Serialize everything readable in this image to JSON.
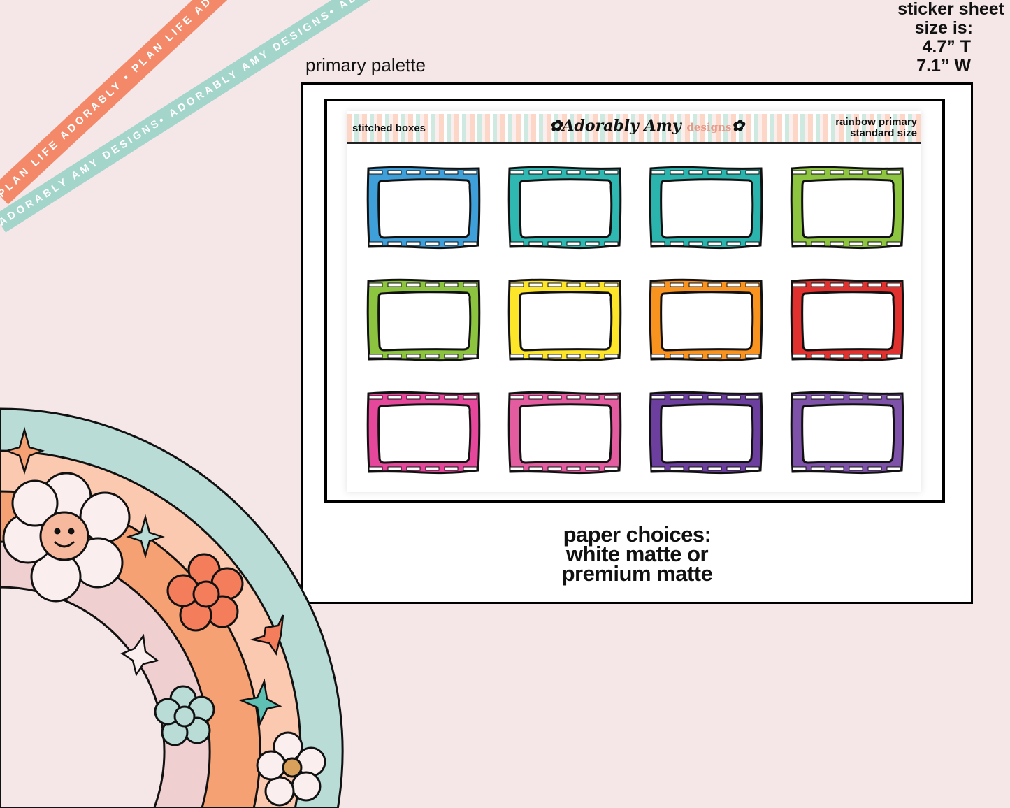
{
  "ribbons": {
    "orange_text": "PLAN LIFE ADORABLY • PLAN LIFE ADORABLY • PLAN LIFE ADORABLY •",
    "teal_text": "ADORABLY AMY DESIGNS• ADORABLY AMY DESIGNS• ADORABLY AMY DESIGNS•"
  },
  "size_note": {
    "line1": "sticker sheet",
    "line2": "size is:",
    "line3": "4.7” T",
    "line4": "7.1” W"
  },
  "palette_title": "primary palette",
  "sheet": {
    "label_left": "stitched boxes",
    "logo": "Adorably Amy",
    "logo_sub": "designs",
    "label_right_1": "rainbow primary",
    "label_right_2": "standard size"
  },
  "stickers": [
    {
      "color": "#3f9fd9"
    },
    {
      "color": "#2fb8b1"
    },
    {
      "color": "#2bb3ad"
    },
    {
      "color": "#8dc540"
    },
    {
      "color": "#8cc43f"
    },
    {
      "color": "#fde52a"
    },
    {
      "color": "#f7931e"
    },
    {
      "color": "#e1312f"
    },
    {
      "color": "#e5489b"
    },
    {
      "color": "#e35c9f"
    },
    {
      "color": "#6c3e9e"
    },
    {
      "color": "#7d52a8"
    }
  ],
  "paper_choices": {
    "line1": "paper choices:",
    "line2": "white matte or",
    "line3": "premium matte"
  },
  "colors": {
    "background": "#f5e7e7",
    "rainbow_teal": "#b9dcd6",
    "rainbow_peach": "#fbc8b0",
    "rainbow_orange": "#f5a173",
    "rainbow_pink": "#f0cfd0"
  }
}
